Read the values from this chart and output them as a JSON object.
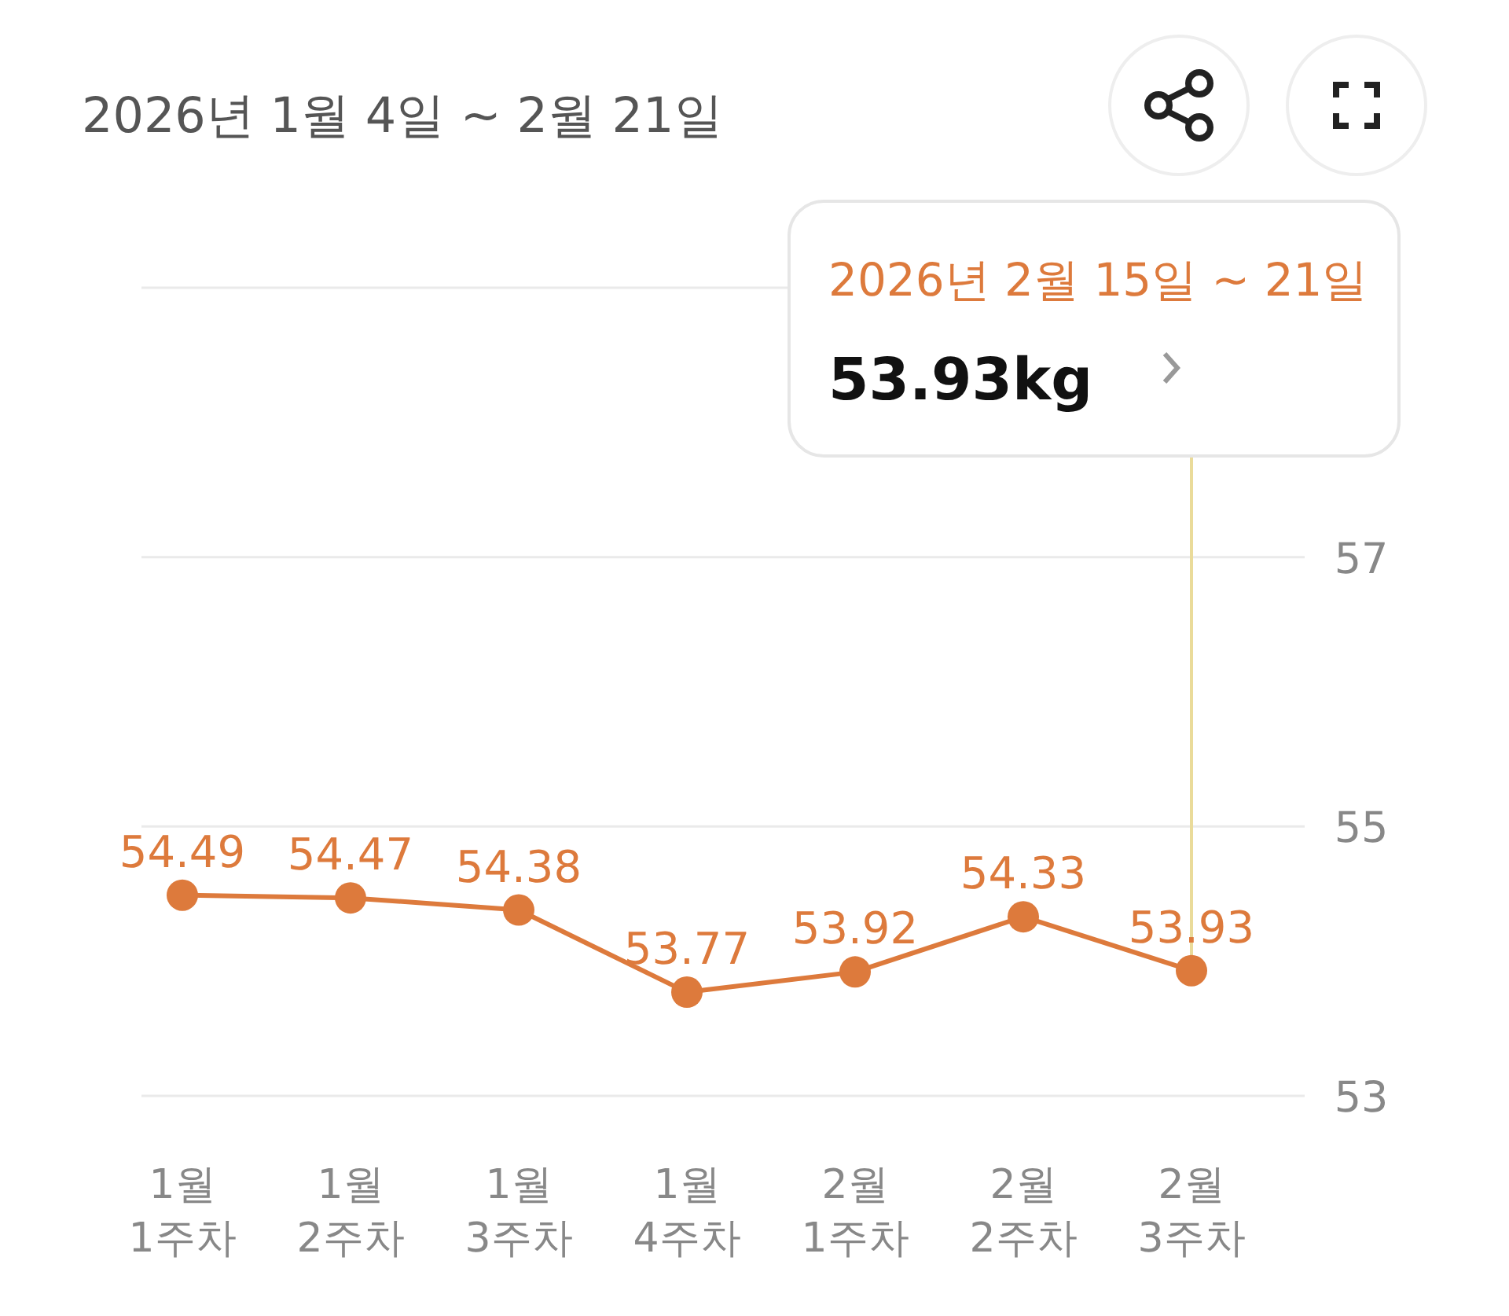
{
  "chart_data": {
    "type": "line",
    "title": "2026년 1월 4일 ~ 2월 21일",
    "categories": [
      "1월 1주차",
      "1월 2주차",
      "1월 3주차",
      "1월 4주차",
      "2월 1주차",
      "2월 2주차",
      "2월 3주차"
    ],
    "values": [
      54.49,
      54.47,
      54.38,
      53.77,
      53.92,
      54.33,
      53.93
    ],
    "color": "#dd7a3c",
    "ylim": [
      53,
      59
    ],
    "yticks": [
      53,
      55,
      57,
      {
        "value": 59,
        "label": null
      }
    ],
    "grid": "y",
    "marker": "circle",
    "data_labels": true,
    "annotations": [
      "2026년 2월 15일 ~ 21일",
      "53.93kg"
    ]
  }
}
